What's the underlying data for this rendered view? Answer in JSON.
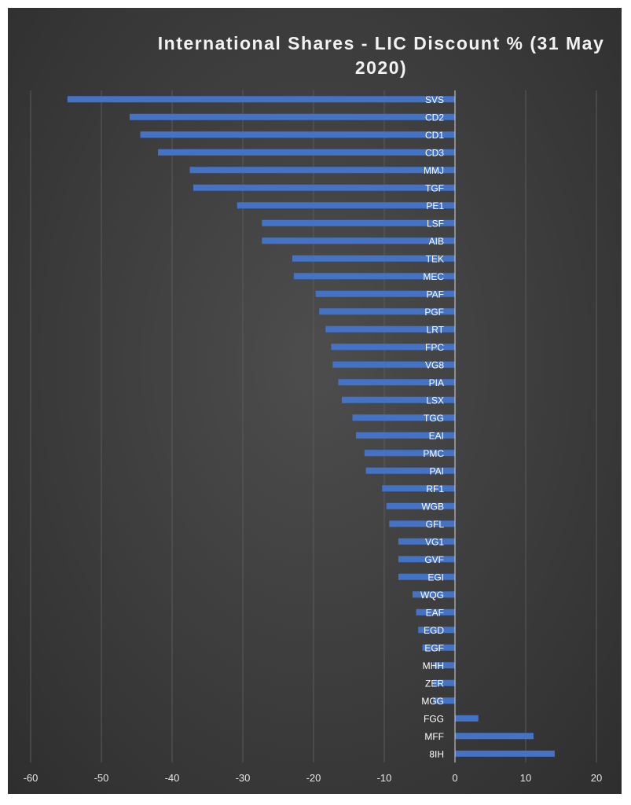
{
  "chart_data": {
    "type": "bar",
    "orientation": "horizontal",
    "title": "International Shares - LIC Discount % (31 May 2020)",
    "xlabel": "",
    "ylabel": "",
    "xlim": [
      -65,
      25
    ],
    "x_ticks": [
      -60,
      -50,
      -40,
      -30,
      -20,
      -10,
      0,
      10,
      20
    ],
    "grid": "vertical",
    "legend": "none",
    "bar_color": "#4472c4",
    "categories": [
      "SVS",
      "CD2",
      "CD1",
      "CD3",
      "MMJ",
      "TGF",
      "PE1",
      "LSF",
      "AIB",
      "TEK",
      "MEC",
      "PAF",
      "PGF",
      "LRT",
      "FPC",
      "VG8",
      "PIA",
      "LSX",
      "TGG",
      "EAI",
      "PMC",
      "PAI",
      "RF1",
      "WGB",
      "GFL",
      "VG1",
      "GVF",
      "EGI",
      "WQG",
      "EAF",
      "EGD",
      "EGF",
      "MHH",
      "ZER",
      "MGG",
      "FGG",
      "MFF",
      "8IH"
    ],
    "values": [
      -54.8,
      -46,
      -44.5,
      -42,
      -37.5,
      -37,
      -30.8,
      -27.3,
      -27.3,
      -23,
      -22.8,
      -19.7,
      -19.2,
      -18.3,
      -17.5,
      -17.3,
      -16.5,
      -16,
      -14.5,
      -14,
      -12.8,
      -12.6,
      -10.3,
      -9.7,
      -9.3,
      -8,
      -8,
      -8,
      -6,
      -5.5,
      -5.2,
      -4.6,
      -3.1,
      -3.1,
      -3.1,
      3.3,
      11.1,
      14.1
    ]
  }
}
